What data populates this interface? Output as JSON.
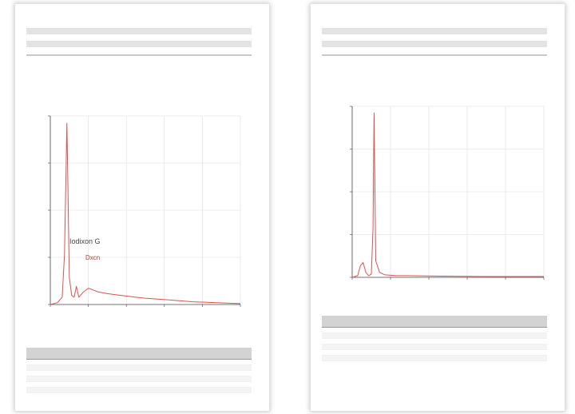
{
  "annotations": {
    "left": [
      "Iodixon G",
      "Dxcn"
    ]
  },
  "colors": {
    "trace": "#d9534f",
    "annotation_dark": "#444444",
    "annotation_red": "#c0392b",
    "grid": "#dddddd",
    "axis": "#444444"
  },
  "chart_data": [
    {
      "type": "line",
      "title": "",
      "xlabel": "",
      "ylabel": "",
      "xlim": [
        0,
        40
      ],
      "ylim": [
        0,
        104
      ],
      "grid": true,
      "series": [
        {
          "x": [
            0,
            1.5,
            2.5,
            3,
            3.5,
            4,
            4.5,
            5,
            5.5,
            6,
            7,
            8,
            9,
            10,
            12,
            15,
            18,
            20,
            25,
            30,
            35,
            40
          ],
          "y": [
            0,
            1,
            4,
            28,
            100,
            15,
            5,
            4,
            10,
            4,
            7,
            9,
            8,
            7,
            6,
            5,
            4,
            3.5,
            2.5,
            1.5,
            1,
            0.5
          ]
        }
      ]
    },
    {
      "type": "line",
      "title": "",
      "xlabel": "",
      "ylabel": "",
      "xlim": [
        0,
        35
      ],
      "ylim": [
        0,
        104
      ],
      "grid": true,
      "series": [
        {
          "x": [
            0,
            0.5,
            1,
            1.5,
            2,
            2.5,
            3,
            3.5,
            3.8,
            4,
            4.3,
            5,
            6,
            8,
            10,
            15,
            20,
            25,
            30,
            35
          ],
          "y": [
            0,
            0.5,
            1,
            7,
            9,
            3,
            1,
            2,
            30,
            100,
            10,
            3,
            1.5,
            1,
            1,
            0.8,
            0.6,
            0.5,
            0.5,
            0.5
          ]
        }
      ]
    }
  ]
}
